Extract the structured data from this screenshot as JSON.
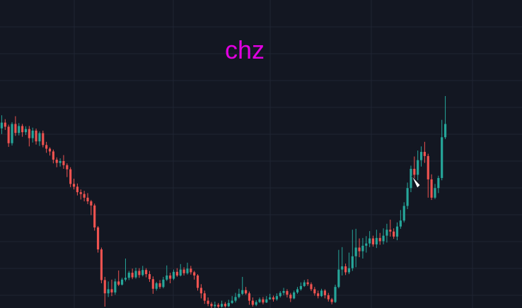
{
  "chart_data": {
    "type": "candlestick",
    "title": "chz",
    "grid": true,
    "colors": {
      "background": "#131722",
      "grid": "#1f2433",
      "up": "#26a69a",
      "down": "#ef5350",
      "title": "#e000e0"
    },
    "y_domain": [
      0,
      100
    ],
    "candles": [
      [
        78.5,
        81.0,
        84.2,
        76.0
      ],
      [
        81.0,
        79.2,
        82.5,
        77.8
      ],
      [
        79.2,
        72.0,
        80.1,
        70.4
      ],
      [
        72.0,
        80.4,
        81.2,
        71.0
      ],
      [
        80.4,
        76.5,
        83.8,
        75.2
      ],
      [
        76.5,
        79.5,
        80.8,
        75.4
      ],
      [
        79.5,
        76.8,
        80.4,
        74.8
      ],
      [
        76.8,
        78.2,
        79.4,
        75.6
      ],
      [
        78.2,
        74.2,
        79.5,
        70.6
      ],
      [
        74.2,
        77.5,
        78.8,
        72.3
      ],
      [
        77.5,
        72.8,
        78.4,
        71.4
      ],
      [
        72.8,
        76.4,
        77.2,
        70.8
      ],
      [
        76.4,
        71.2,
        77.5,
        70.2
      ],
      [
        71.2,
        69.6,
        72.6,
        67.8
      ],
      [
        69.6,
        68.4,
        70.2,
        66.6
      ],
      [
        68.4,
        64.8,
        69.2,
        63.2
      ],
      [
        64.8,
        63.4,
        65.8,
        61.5
      ],
      [
        63.4,
        64.2,
        65.4,
        61.8
      ],
      [
        64.2,
        62.4,
        66.8,
        60.8
      ],
      [
        62.4,
        60.6,
        63.2,
        57.2
      ],
      [
        60.6,
        54.2,
        61.5,
        52.8
      ],
      [
        54.2,
        53.0,
        56.5,
        51.8
      ],
      [
        53.0,
        50.6,
        54.4,
        49.2
      ],
      [
        50.6,
        49.8,
        51.8,
        47.4
      ],
      [
        49.8,
        48.2,
        51.2,
        46.6
      ],
      [
        48.2,
        46.6,
        50.2,
        45.4
      ],
      [
        46.6,
        44.8,
        47.2,
        40.6
      ],
      [
        44.8,
        35.2,
        45.6,
        33.8
      ],
      [
        35.2,
        25.6,
        35.8,
        24.2
      ],
      [
        25.6,
        12.2,
        26.4,
        10.8
      ],
      [
        12.2,
        6.4,
        13.6,
        0.6
      ],
      [
        6.4,
        8.2,
        11.6,
        4.8
      ],
      [
        8.2,
        6.8,
        12.4,
        5.2
      ],
      [
        6.8,
        11.6,
        12.8,
        5.8
      ],
      [
        11.6,
        10.2,
        16.4,
        9.6
      ],
      [
        10.2,
        12.4,
        13.2,
        9.8
      ],
      [
        12.4,
        13.2,
        21.6,
        11.6
      ],
      [
        13.2,
        15.4,
        16.2,
        12.2
      ],
      [
        15.4,
        13.4,
        17.2,
        12.6
      ],
      [
        13.4,
        16.2,
        17.6,
        12.8
      ],
      [
        16.2,
        14.4,
        17.4,
        13.2
      ],
      [
        14.4,
        16.6,
        18.4,
        13.8
      ],
      [
        16.6,
        14.8,
        17.4,
        13.4
      ],
      [
        14.8,
        12.6,
        16.2,
        11.4
      ],
      [
        12.6,
        8.4,
        13.8,
        6.2
      ],
      [
        8.4,
        10.8,
        11.4,
        7.6
      ],
      [
        10.8,
        9.2,
        12.2,
        8.4
      ],
      [
        9.2,
        12.4,
        13.6,
        8.6
      ],
      [
        12.4,
        14.2,
        18.6,
        11.8
      ],
      [
        14.2,
        12.8,
        15.4,
        10.8
      ],
      [
        12.8,
        15.8,
        16.8,
        12.2
      ],
      [
        15.8,
        14.2,
        17.4,
        13.6
      ],
      [
        14.2,
        16.8,
        19.2,
        13.8
      ],
      [
        16.8,
        15.2,
        17.8,
        14.2
      ],
      [
        15.2,
        17.2,
        19.8,
        14.6
      ],
      [
        17.2,
        15.6,
        18.4,
        14.6
      ],
      [
        15.6,
        14.2,
        16.2,
        12.4
      ],
      [
        14.2,
        8.8,
        14.8,
        7.6
      ],
      [
        8.8,
        6.4,
        10.4,
        4.2
      ],
      [
        6.4,
        3.2,
        7.6,
        1.8
      ],
      [
        3.2,
        1.8,
        4.6,
        0.8
      ],
      [
        1.8,
        0.8,
        2.6,
        -0.2
      ],
      [
        0.8,
        1.4,
        2.8,
        -0.4
      ],
      [
        1.4,
        0.6,
        2.2,
        -0.6
      ],
      [
        0.6,
        1.8,
        3.2,
        0.2
      ],
      [
        1.8,
        0.8,
        2.6,
        0.2
      ],
      [
        0.8,
        2.2,
        3.6,
        0.4
      ],
      [
        2.2,
        3.2,
        5.2,
        1.8
      ],
      [
        3.2,
        4.8,
        6.6,
        2.4
      ],
      [
        4.8,
        6.2,
        8.4,
        4.2
      ],
      [
        6.2,
        7.8,
        13.6,
        5.6
      ],
      [
        7.8,
        6.4,
        9.2,
        5.8
      ],
      [
        6.4,
        3.2,
        7.2,
        1.4
      ],
      [
        3.2,
        1.4,
        4.6,
        0.6
      ],
      [
        1.4,
        2.6,
        3.4,
        0.8
      ],
      [
        2.6,
        3.8,
        4.6,
        2.2
      ],
      [
        3.8,
        2.4,
        4.8,
        1.6
      ],
      [
        2.4,
        3.8,
        5.2,
        2.2
      ],
      [
        3.8,
        4.6,
        6.2,
        3.6
      ],
      [
        4.6,
        3.8,
        5.4,
        2.8
      ],
      [
        3.8,
        5.2,
        6.4,
        3.2
      ],
      [
        5.2,
        6.6,
        7.4,
        4.6
      ],
      [
        6.6,
        7.4,
        8.8,
        5.6
      ],
      [
        7.4,
        5.8,
        8.2,
        4.6
      ],
      [
        5.8,
        4.2,
        6.6,
        2.6
      ],
      [
        4.2,
        6.8,
        7.6,
        3.8
      ],
      [
        6.8,
        8.2,
        9.2,
        6.2
      ],
      [
        8.2,
        9.6,
        11.2,
        7.6
      ],
      [
        9.6,
        11.2,
        12.2,
        9.2
      ],
      [
        11.2,
        10.4,
        12.6,
        9.6
      ],
      [
        10.4,
        8.2,
        11.2,
        7.4
      ],
      [
        8.2,
        6.4,
        9.2,
        5.4
      ],
      [
        6.4,
        5.2,
        7.6,
        4.2
      ],
      [
        5.2,
        7.6,
        8.4,
        4.8
      ],
      [
        7.6,
        5.6,
        8.2,
        4.2
      ],
      [
        5.6,
        3.8,
        6.6,
        2.8
      ],
      [
        3.8,
        2.6,
        4.4,
        1.6
      ],
      [
        2.6,
        9.2,
        10.2,
        2.2
      ],
      [
        9.2,
        16.8,
        25.4,
        8.6
      ],
      [
        16.8,
        18.2,
        26.6,
        14.2
      ],
      [
        18.2,
        15.6,
        19.4,
        14.4
      ],
      [
        15.6,
        17.4,
        24.2,
        14.8
      ],
      [
        17.4,
        22.6,
        34.2,
        16.2
      ],
      [
        22.6,
        26.4,
        34.6,
        17.8
      ],
      [
        26.4,
        24.8,
        30.4,
        22.2
      ],
      [
        24.8,
        27.2,
        30.6,
        21.6
      ],
      [
        27.2,
        28.2,
        31.4,
        24.2
      ],
      [
        28.2,
        30.4,
        33.6,
        26.6
      ],
      [
        30.4,
        27.8,
        31.6,
        26.8
      ],
      [
        27.8,
        30.6,
        34.2,
        26.2
      ],
      [
        30.6,
        29.2,
        32.8,
        27.6
      ],
      [
        29.2,
        31.6,
        34.8,
        27.8
      ],
      [
        31.6,
        34.2,
        36.8,
        28.6
      ],
      [
        34.2,
        33.4,
        38.6,
        31.2
      ],
      [
        33.4,
        31.2,
        34.8,
        30.2
      ],
      [
        31.2,
        35.6,
        37.4,
        29.6
      ],
      [
        35.6,
        38.2,
        42.8,
        34.6
      ],
      [
        38.2,
        44.6,
        46.2,
        37.4
      ],
      [
        44.6,
        52.4,
        54.8,
        43.2
      ],
      [
        52.4,
        60.8,
        62.2,
        50.6
      ],
      [
        60.8,
        58.2,
        66.2,
        56.4
      ],
      [
        58.2,
        64.6,
        68.8,
        55.8
      ],
      [
        64.6,
        68.2,
        70.6,
        61.8
      ],
      [
        68.2,
        66.4,
        72.6,
        63.4
      ],
      [
        66.4,
        56.2,
        67.4,
        48.2
      ],
      [
        56.2,
        48.2,
        58.4,
        47.2
      ],
      [
        48.2,
        52.4,
        54.2,
        47.6
      ],
      [
        52.4,
        56.8,
        57.8,
        50.2
      ],
      [
        56.8,
        74.6,
        82.2,
        55.8
      ],
      [
        74.6,
        80.4,
        92.6,
        73.8
      ]
    ]
  }
}
